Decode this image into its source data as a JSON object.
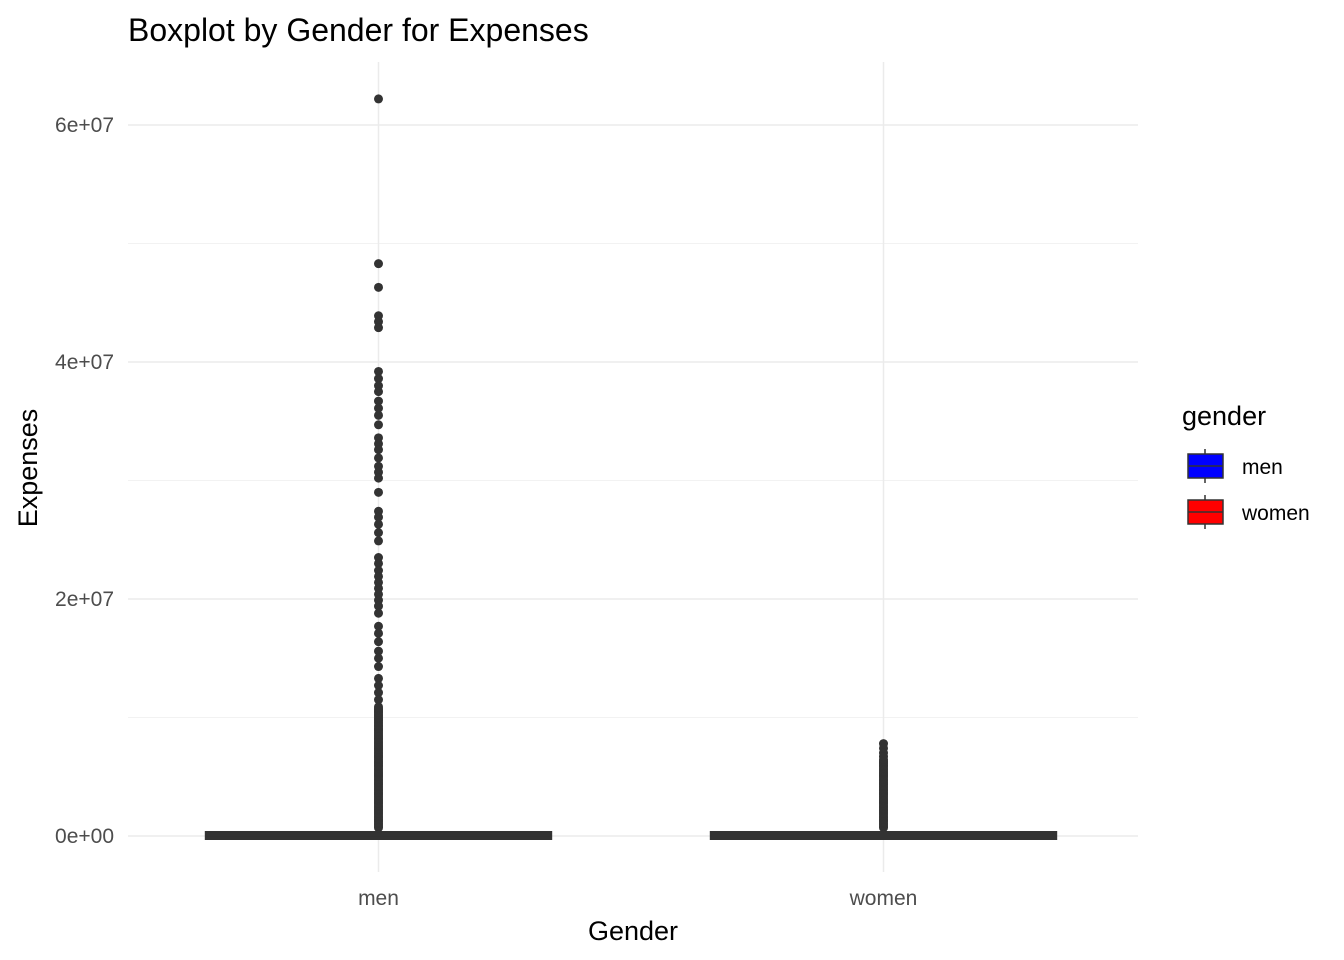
{
  "chart_data": {
    "type": "boxplot",
    "title": "Boxplot by Gender for Expenses",
    "xlabel": "Gender",
    "ylabel": "Expenses",
    "categories": [
      "men",
      "women"
    ],
    "y_ticks": [
      {
        "value": 0,
        "label": "0e+00"
      },
      {
        "value": 20000000,
        "label": "2e+07"
      },
      {
        "value": 40000000,
        "label": "4e+07"
      },
      {
        "value": 60000000,
        "label": "6e+07"
      }
    ],
    "ylim": [
      -3000000,
      65000000
    ],
    "grid": true,
    "legend": {
      "title": "gender",
      "position": "right",
      "entries": [
        {
          "label": "men",
          "color": "#0000ff"
        },
        {
          "label": "women",
          "color": "#ff0000"
        }
      ]
    },
    "series": [
      {
        "name": "men",
        "fill": "#0000ff",
        "q1": 0,
        "median": 100000,
        "q3": 250000,
        "whisker_low": 0,
        "whisker_high": 600000,
        "outlier_dense_range": [
          700000,
          11000000
        ],
        "outliers": [
          62200000,
          48300000,
          46300000,
          43900000,
          43400000,
          42900000,
          39200000,
          38600000,
          38000000,
          37500000,
          36700000,
          36100000,
          35500000,
          34700000,
          33600000,
          33100000,
          32600000,
          31900000,
          31200000,
          30700000,
          30200000,
          29000000,
          27400000,
          26900000,
          26300000,
          25600000,
          24900000,
          23500000,
          23000000,
          22400000,
          21900000,
          21400000,
          20900000,
          20400000,
          19900000,
          19400000,
          18800000,
          17700000,
          17100000,
          16400000,
          15600000,
          15000000,
          14300000,
          13300000,
          12700000,
          12100000,
          11500000
        ]
      },
      {
        "name": "women",
        "fill": "#ff0000",
        "q1": 0,
        "median": 80000,
        "q3": 200000,
        "whisker_low": 0,
        "whisker_high": 500000,
        "outlier_dense_range": [
          700000,
          6500000
        ],
        "outliers": [
          7800000,
          7400000,
          7000000,
          6700000
        ]
      }
    ]
  },
  "colors": {
    "box_outline": "#333333",
    "outlier_point": "#333333",
    "grid": "#ebebeb"
  }
}
